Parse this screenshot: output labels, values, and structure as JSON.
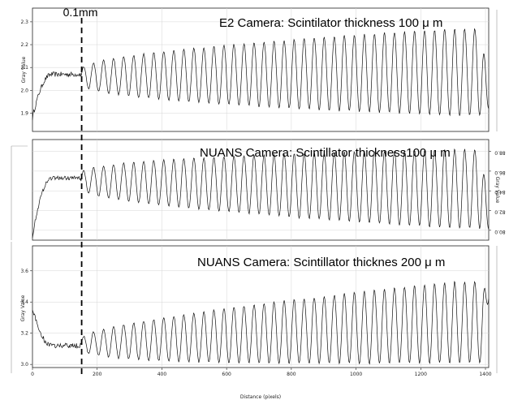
{
  "chart_data": [
    {
      "type": "line",
      "title": "E2 Camera: Scintilator thickness 100 μ m",
      "ylabel": "Gray Value",
      "y_ticks": [
        "1.9",
        "2.0",
        "2.1",
        "2.2",
        "2.3"
      ],
      "ylim": [
        1.82,
        2.36
      ],
      "xlim": [
        0,
        1410
      ],
      "grid": true,
      "series": [
        {
          "profile": {
            "start_level": 1.88,
            "plateau_level": 2.07,
            "plateau_end": 155,
            "osc_start": 150,
            "period": 31.0,
            "amp_start": 0.03,
            "amp_end": 0.19,
            "center_start": 2.06,
            "center_end": 2.08,
            "end_drop": 1.92
          }
        }
      ]
    },
    {
      "type": "line",
      "title": "NUANS Camera: Scintillator thickness100 μ m",
      "ylabel": "Gray Value",
      "y_ticks": [
        "80.0",
        "82.0",
        "84.0",
        "86.0",
        "88.0"
      ],
      "y_ticks_mirrored": true,
      "ylim": [
        79.0,
        89.2
      ],
      "xlim": [
        0,
        1410
      ],
      "grid": true,
      "series": [
        {
          "profile": {
            "start_level": 79.4,
            "plateau_level": 85.3,
            "plateau_end": 155,
            "osc_start": 150,
            "period": 31.0,
            "amp_start": 0.8,
            "amp_end": 4.0,
            "center_start": 85.0,
            "center_end": 84.2,
            "end_drop": 80.1
          }
        }
      ]
    },
    {
      "type": "line",
      "title": "NUANS Camera: Scintillator thicknes 200 μ m",
      "ylabel": "Gray Value",
      "xlabel": "Distance (pixels)",
      "y_ticks": [
        "3.0",
        "3.2",
        "3.4",
        "3.6"
      ],
      "x_ticks": [
        "0",
        "200",
        "400",
        "600",
        "800",
        "1000",
        "1200",
        "1400"
      ],
      "ylim": [
        2.98,
        3.76
      ],
      "xlim": [
        0,
        1410
      ],
      "grid": true,
      "series": [
        {
          "profile": {
            "start_level": 3.36,
            "plateau_level": 3.12,
            "plateau_end": 155,
            "osc_start": 150,
            "period": 31.0,
            "amp_start": 0.03,
            "amp_end": 0.26,
            "center_start": 3.13,
            "center_end": 3.27,
            "end_drop": 3.42
          }
        }
      ]
    }
  ],
  "marker": {
    "label": "0.1mm",
    "x_value": 152
  }
}
